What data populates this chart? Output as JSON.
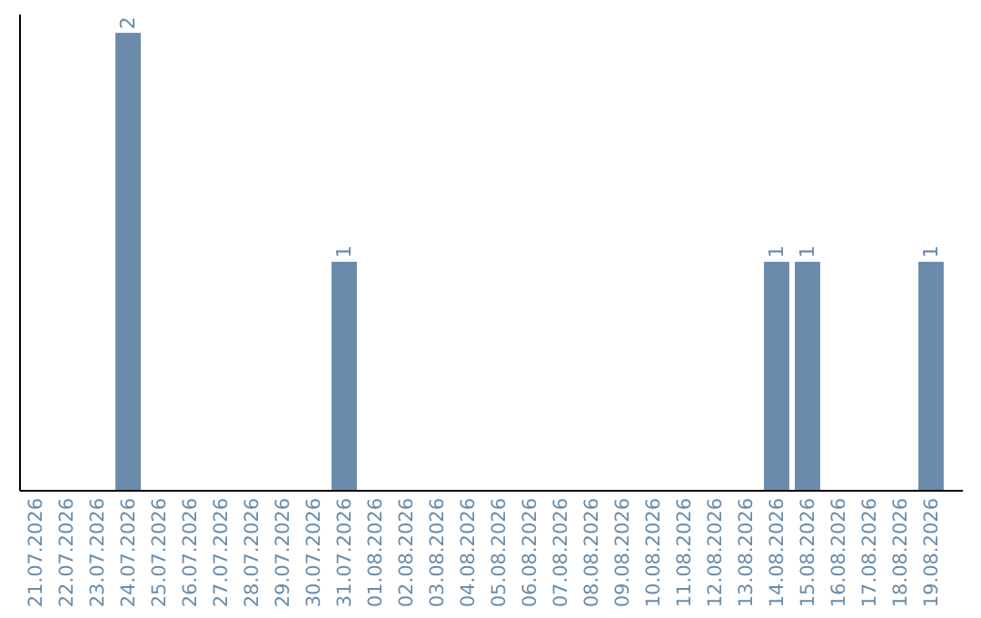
{
  "chart_data": {
    "type": "bar",
    "categories": [
      "21.07.2026",
      "22.07.2026",
      "23.07.2026",
      "24.07.2026",
      "25.07.2026",
      "26.07.2026",
      "27.07.2026",
      "28.07.2026",
      "29.07.2026",
      "30.07.2026",
      "31.07.2026",
      "01.08.2026",
      "02.08.2026",
      "03.08.2026",
      "04.08.2026",
      "05.08.2026",
      "06.08.2026",
      "07.08.2026",
      "08.08.2026",
      "09.08.2026",
      "10.08.2026",
      "11.08.2026",
      "12.08.2026",
      "13.08.2026",
      "14.08.2026",
      "15.08.2026",
      "16.08.2026",
      "17.08.2026",
      "18.08.2026",
      "19.08.2026"
    ],
    "values": [
      0,
      0,
      0,
      2,
      0,
      0,
      0,
      0,
      0,
      0,
      1,
      0,
      0,
      0,
      0,
      0,
      0,
      0,
      0,
      0,
      0,
      0,
      0,
      0,
      1,
      1,
      0,
      0,
      0,
      1
    ],
    "value_labels": [
      null,
      null,
      null,
      "2",
      null,
      null,
      null,
      null,
      null,
      null,
      "1",
      null,
      null,
      null,
      null,
      null,
      null,
      null,
      null,
      null,
      null,
      null,
      null,
      null,
      "1",
      "1",
      null,
      null,
      null,
      "1"
    ],
    "color": "#6a8caa",
    "ylim": [
      0,
      2.08
    ],
    "tick_labels": "x"
  }
}
